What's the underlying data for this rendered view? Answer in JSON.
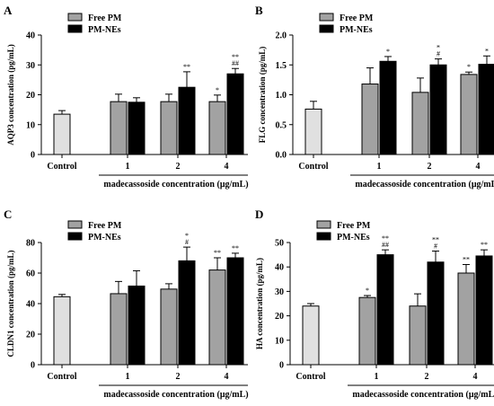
{
  "chart_data": [
    {
      "type": "bar",
      "panel_label": "A",
      "ylabel": "AQP3 concentration (pg/mL)",
      "xlabel": "madecassoside concentration (μg/mL)",
      "ylim": [
        0,
        40
      ],
      "yticks": [
        0,
        10,
        20,
        30,
        40
      ],
      "control": {
        "label": "Control",
        "value": 13.5,
        "error": 1.2
      },
      "categories": [
        "1",
        "2",
        "4"
      ],
      "legend": [
        "Free PM",
        "PM-NEs"
      ],
      "series": [
        {
          "name": "Free PM",
          "values": [
            17.7,
            17.7,
            17.7
          ],
          "errors": [
            2.5,
            2.5,
            2.2
          ],
          "marks": [
            "",
            "",
            "*"
          ]
        },
        {
          "name": "PM-NEs",
          "values": [
            17.5,
            22.5,
            27
          ],
          "errors": [
            1.5,
            5.2,
            1.8
          ],
          "marks": [
            "",
            "**",
            "**\n##"
          ]
        }
      ],
      "colors": {
        "control": "#e0e0e0",
        "Free PM": "#a2a2a2",
        "PM-NEs": "#000000"
      }
    },
    {
      "type": "bar",
      "panel_label": "B",
      "ylabel": "FLG concentration (pg/mL)",
      "xlabel": "madecassoside concentration (μg/mL)",
      "ylim": [
        0,
        2.0
      ],
      "yticks": [
        0.0,
        0.5,
        1.0,
        1.5,
        2.0
      ],
      "control": {
        "label": "Control",
        "value": 0.76,
        "error": 0.13
      },
      "categories": [
        "1",
        "2",
        "4"
      ],
      "legend": [
        "Free PM",
        "PM-NEs"
      ],
      "series": [
        {
          "name": "Free PM",
          "values": [
            1.18,
            1.04,
            1.34
          ],
          "errors": [
            0.27,
            0.24,
            0.04
          ],
          "marks": [
            "",
            "",
            "*"
          ]
        },
        {
          "name": "PM-NEs",
          "values": [
            1.56,
            1.5,
            1.51
          ],
          "errors": [
            0.08,
            0.1,
            0.14
          ],
          "marks": [
            "*",
            "*\n#",
            "*"
          ]
        }
      ],
      "colors": {
        "control": "#e0e0e0",
        "Free PM": "#a2a2a2",
        "PM-NEs": "#000000"
      }
    },
    {
      "type": "bar",
      "panel_label": "C",
      "ylabel": "CLDN1 concentration (pg/mL)",
      "xlabel": "madecassoside concentration (μg/mL)",
      "ylim": [
        0,
        80
      ],
      "yticks": [
        0,
        20,
        40,
        60,
        80
      ],
      "control": {
        "label": "Control",
        "value": 44.5,
        "error": 1.5
      },
      "categories": [
        "1",
        "2",
        "4"
      ],
      "legend": [
        "Free PM",
        "PM-NEs"
      ],
      "series": [
        {
          "name": "Free PM",
          "values": [
            46.5,
            49.5,
            62
          ],
          "errors": [
            8,
            3.5,
            8
          ],
          "marks": [
            "",
            "",
            "**"
          ]
        },
        {
          "name": "PM-NEs",
          "values": [
            51.5,
            68,
            70
          ],
          "errors": [
            10,
            9,
            3
          ],
          "marks": [
            "",
            "*\n#",
            "**"
          ]
        }
      ],
      "colors": {
        "control": "#e0e0e0",
        "Free PM": "#a2a2a2",
        "PM-NEs": "#000000"
      }
    },
    {
      "type": "bar",
      "panel_label": "D",
      "ylabel": "HA concentration (pg/mL)",
      "xlabel": "madecassoside concentration (μg/mL)",
      "ylim": [
        0,
        50
      ],
      "yticks": [
        0,
        10,
        20,
        30,
        40,
        50
      ],
      "control": {
        "label": "Control",
        "value": 24,
        "error": 1
      },
      "categories": [
        "1",
        "2",
        "4"
      ],
      "legend": [
        "Free PM",
        "PM-NEs"
      ],
      "series": [
        {
          "name": "Free PM",
          "values": [
            27.5,
            24,
            37.5
          ],
          "errors": [
            0.8,
            5,
            3.5
          ],
          "marks": [
            "*",
            "",
            "**"
          ]
        },
        {
          "name": "PM-NEs",
          "values": [
            45,
            42,
            44.5
          ],
          "errors": [
            2,
            4.5,
            2.5
          ],
          "marks": [
            "**\n##",
            "**\n#",
            "**"
          ]
        }
      ],
      "colors": {
        "control": "#e0e0e0",
        "Free PM": "#a2a2a2",
        "PM-NEs": "#000000"
      }
    }
  ]
}
